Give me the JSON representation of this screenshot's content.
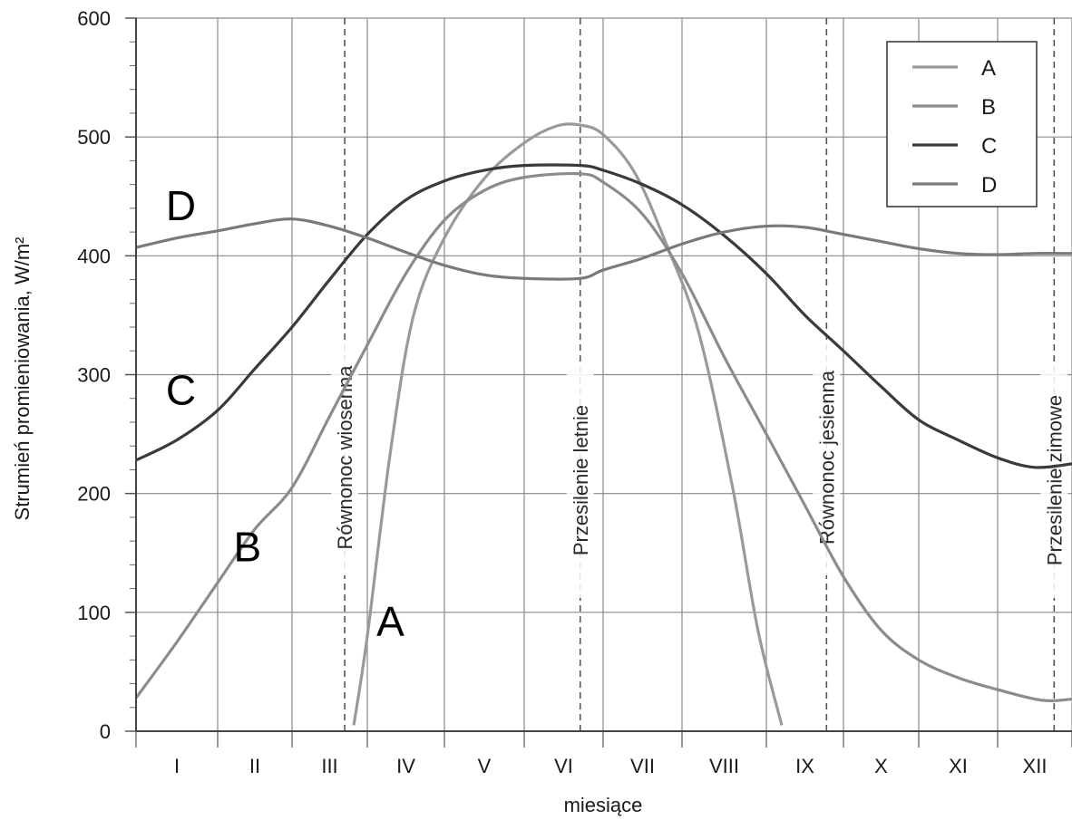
{
  "chart_data": {
    "type": "line",
    "xlabel": "miesiące",
    "ylabel": "Strumień promieniowania, W/m²",
    "ylim": [
      0,
      600
    ],
    "yticks": [
      0,
      100,
      200,
      300,
      400,
      500,
      600
    ],
    "xlim": [
      0,
      12
    ],
    "months": [
      "I",
      "II",
      "III",
      "IV",
      "V",
      "VI",
      "VII",
      "VIII",
      "IX",
      "X",
      "XI",
      "XII"
    ],
    "month_boundaries": [
      0,
      1,
      2,
      3,
      4,
      5,
      6,
      7,
      8,
      9,
      10,
      11,
      12
    ],
    "grid": true,
    "legend_position": "top-right",
    "events": [
      {
        "label": "Równonoc wiosenna",
        "x": 2.7
      },
      {
        "label": "Przesilenie letnie",
        "x": 5.71
      },
      {
        "label": "Równonoc jesienna",
        "x": 8.78
      },
      {
        "label": "Przesilenie zimowe",
        "x": 11.76
      }
    ],
    "series": [
      {
        "name": "A",
        "color": "#9a9a9a",
        "points": [
          [
            2.82,
            5
          ],
          [
            3.0,
            80
          ],
          [
            3.3,
            235
          ],
          [
            3.6,
            350
          ],
          [
            4.0,
            415
          ],
          [
            4.5,
            465
          ],
          [
            5.0,
            495
          ],
          [
            5.4,
            509
          ],
          [
            5.71,
            510
          ],
          [
            6.0,
            502
          ],
          [
            6.4,
            470
          ],
          [
            6.8,
            410
          ],
          [
            7.2,
            335
          ],
          [
            7.6,
            205
          ],
          [
            7.9,
            85
          ],
          [
            8.2,
            5
          ]
        ]
      },
      {
        "name": "B",
        "color": "#8c8c8c",
        "points": [
          [
            0,
            28
          ],
          [
            0.5,
            75
          ],
          [
            1.0,
            125
          ],
          [
            1.5,
            170
          ],
          [
            2.0,
            205
          ],
          [
            2.5,
            265
          ],
          [
            3.0,
            325
          ],
          [
            3.5,
            385
          ],
          [
            4.0,
            430
          ],
          [
            4.5,
            455
          ],
          [
            5.0,
            466
          ],
          [
            5.71,
            469
          ],
          [
            6.0,
            462
          ],
          [
            6.5,
            435
          ],
          [
            7.0,
            385
          ],
          [
            7.5,
            315
          ],
          [
            8.0,
            250
          ],
          [
            8.5,
            190
          ],
          [
            9.0,
            130
          ],
          [
            9.5,
            85
          ],
          [
            10.0,
            60
          ],
          [
            10.5,
            45
          ],
          [
            11.0,
            35
          ],
          [
            11.6,
            26
          ],
          [
            12,
            27
          ]
        ]
      },
      {
        "name": "C",
        "color": "#3a3a3a",
        "points": [
          [
            0,
            228
          ],
          [
            0.5,
            245
          ],
          [
            1.0,
            270
          ],
          [
            1.5,
            305
          ],
          [
            2.0,
            340
          ],
          [
            2.5,
            380
          ],
          [
            3.0,
            418
          ],
          [
            3.5,
            447
          ],
          [
            4.0,
            463
          ],
          [
            4.5,
            472
          ],
          [
            5.0,
            476
          ],
          [
            5.71,
            476
          ],
          [
            6.0,
            472
          ],
          [
            6.5,
            460
          ],
          [
            7.0,
            443
          ],
          [
            7.5,
            417
          ],
          [
            8.0,
            385
          ],
          [
            8.5,
            350
          ],
          [
            9.0,
            320
          ],
          [
            9.5,
            290
          ],
          [
            10.0,
            262
          ],
          [
            10.5,
            245
          ],
          [
            11.0,
            230
          ],
          [
            11.5,
            222
          ],
          [
            12,
            225
          ]
        ]
      },
      {
        "name": "D",
        "color": "#7a7a7a",
        "points": [
          [
            0,
            407
          ],
          [
            0.5,
            415
          ],
          [
            1.0,
            421
          ],
          [
            1.5,
            427
          ],
          [
            2.0,
            431
          ],
          [
            2.5,
            425
          ],
          [
            3.0,
            415
          ],
          [
            3.5,
            403
          ],
          [
            4.0,
            392
          ],
          [
            4.5,
            384
          ],
          [
            5.0,
            381
          ],
          [
            5.71,
            381
          ],
          [
            6.0,
            388
          ],
          [
            6.5,
            398
          ],
          [
            7.0,
            410
          ],
          [
            7.5,
            420
          ],
          [
            8.0,
            425
          ],
          [
            8.5,
            424
          ],
          [
            9.0,
            418
          ],
          [
            9.5,
            412
          ],
          [
            10.0,
            406
          ],
          [
            10.5,
            402
          ],
          [
            11.0,
            401
          ],
          [
            11.5,
            402
          ],
          [
            12,
            402
          ]
        ]
      }
    ],
    "curve_labels": [
      {
        "text": "A",
        "series": "A",
        "x": 3.3,
        "y": 80
      },
      {
        "text": "B",
        "series": "B",
        "x": 1.4,
        "y": 143
      },
      {
        "text": "C",
        "series": "C",
        "x": 0.55,
        "y": 275
      },
      {
        "text": "D",
        "series": "D",
        "x": 0.55,
        "y": 430
      }
    ]
  }
}
